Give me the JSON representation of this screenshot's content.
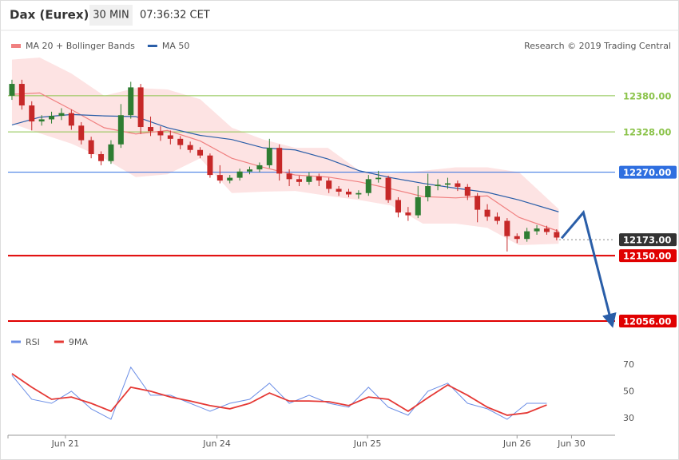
{
  "header": {
    "title": "Dax (Eurex)",
    "timeframe": "30 MIN",
    "time": "07:36:32 CET",
    "credit": "Research © 2019 Trading Central"
  },
  "chart_data": [
    {
      "type": "candlestick",
      "xlim": [
        -0.4,
        60.9
      ],
      "ylim": [
        12041,
        12443
      ],
      "up_color": "#2e7d32",
      "down_color": "#c62828",
      "x": [
        0,
        1,
        2,
        3,
        4,
        5,
        6,
        7,
        8,
        9,
        10,
        11,
        12,
        13,
        14,
        15,
        16,
        17,
        18,
        19,
        20,
        21,
        22,
        23,
        24,
        25,
        26,
        27,
        28,
        29,
        30,
        31,
        32,
        33,
        34,
        35,
        36,
        37,
        38,
        39,
        40,
        41,
        42,
        43,
        44,
        45,
        46,
        47,
        48,
        49,
        50,
        51,
        52,
        53,
        54,
        55
      ],
      "open": [
        12380,
        12397,
        12366,
        12343,
        12346,
        12351,
        12355,
        12337,
        12316,
        12296,
        12286,
        12310,
        12352,
        12392,
        12335,
        12329,
        12323,
        12318,
        12309,
        12302,
        12294,
        12266,
        12258,
        12262,
        12271,
        12274,
        12280,
        12305,
        12268,
        12260,
        12256,
        12264,
        12258,
        12246,
        12242,
        12238,
        12240,
        12260,
        12262,
        12230,
        12212,
        12208,
        12234,
        12250,
        12252,
        12254,
        12249,
        12236,
        12216,
        12206,
        12200,
        12178,
        12174,
        12185,
        12189,
        12184
      ],
      "high": [
        12403,
        12403,
        12372,
        12352,
        12357,
        12362,
        12360,
        12342,
        12321,
        12300,
        12316,
        12368,
        12400,
        12397,
        12350,
        12336,
        12330,
        12322,
        12314,
        12306,
        12297,
        12280,
        12266,
        12275,
        12278,
        12284,
        12318,
        12310,
        12274,
        12265,
        12270,
        12268,
        12262,
        12250,
        12246,
        12244,
        12266,
        12272,
        12265,
        12234,
        12220,
        12250,
        12268,
        12260,
        12262,
        12258,
        12253,
        12240,
        12224,
        12212,
        12204,
        12182,
        12190,
        12194,
        12193,
        12188
      ],
      "low": [
        12374,
        12360,
        12330,
        12337,
        12340,
        12345,
        12331,
        12310,
        12290,
        12280,
        12282,
        12305,
        12347,
        12325,
        12322,
        12315,
        12310,
        12303,
        12298,
        12290,
        12262,
        12254,
        12254,
        12258,
        12267,
        12270,
        12276,
        12258,
        12250,
        12250,
        12252,
        12250,
        12240,
        12236,
        12234,
        12232,
        12236,
        12255,
        12226,
        12205,
        12200,
        12204,
        12228,
        12244,
        12246,
        12243,
        12230,
        12198,
        12200,
        12195,
        12156,
        12168,
        12170,
        12180,
        12180,
        12172
      ],
      "close": [
        12397,
        12366,
        12343,
        12346,
        12351,
        12355,
        12337,
        12316,
        12296,
        12286,
        12310,
        12352,
        12392,
        12335,
        12329,
        12323,
        12318,
        12309,
        12302,
        12294,
        12266,
        12258,
        12262,
        12271,
        12274,
        12280,
        12305,
        12268,
        12260,
        12256,
        12264,
        12258,
        12246,
        12242,
        12238,
        12240,
        12260,
        12262,
        12230,
        12212,
        12208,
        12234,
        12250,
        12252,
        12254,
        12249,
        12236,
        12216,
        12206,
        12200,
        12178,
        12174,
        12185,
        12189,
        12184,
        12176
      ],
      "overlays": [
        {
          "name": "MA 20 + Bollinger Bands",
          "color": "#f08080",
          "fill": "#fde3e3",
          "x": [
            0,
            2.8,
            6,
            9.3,
            12.5,
            15.7,
            19,
            22.2,
            25.4,
            28.6,
            31.9,
            35.1,
            38.3,
            41.5,
            44.8,
            48,
            51.2,
            55.2
          ],
          "upper": [
            12432,
            12435,
            12412,
            12380,
            12391,
            12389,
            12375,
            12334,
            12317,
            12305,
            12305,
            12272,
            12268,
            12272,
            12277,
            12277,
            12270,
            12217
          ],
          "values": [
            12382,
            12384,
            12360,
            12334,
            12325,
            12330,
            12315,
            12290,
            12277,
            12266,
            12263,
            12256,
            12246,
            12235,
            12233,
            12236,
            12205,
            12185
          ],
          "lower": [
            12340,
            12326,
            12311,
            12290,
            12263,
            12267,
            12290,
            12240,
            12242,
            12243,
            12236,
            12230,
            12222,
            12196,
            12196,
            12190,
            12165,
            12167
          ]
        },
        {
          "name": "MA 50",
          "color": "#2a5ea8",
          "x": [
            0,
            2.8,
            6,
            9.3,
            12.5,
            15.7,
            19,
            22.2,
            25.4,
            28.6,
            31.9,
            35.1,
            38.3,
            41.5,
            44.8,
            48,
            51.2,
            55.2
          ],
          "values": [
            12338,
            12349,
            12353,
            12351,
            12350,
            12334,
            12323,
            12317,
            12305,
            12302,
            12289,
            12272,
            12262,
            12254,
            12247,
            12241,
            12230,
            12213
          ]
        }
      ],
      "levels": [
        {
          "value": 12380,
          "label": "12380.00",
          "color": "#8bc34a",
          "tag": "text",
          "line": "solid"
        },
        {
          "value": 12328,
          "label": "12328.00",
          "color": "#8bc34a",
          "tag": "text",
          "line": "solid"
        },
        {
          "value": 12270,
          "label": "12270.00",
          "color": "#2f6fe0",
          "tag": "box",
          "line": "solid"
        },
        {
          "value": 12173,
          "label": "12173.00",
          "color": "#333333",
          "tag": "box",
          "line": "dotted"
        },
        {
          "value": 12150,
          "label": "12150.00",
          "color": "#e00000",
          "tag": "box",
          "line": "solid"
        },
        {
          "value": 12056,
          "label": "12056.00",
          "color": "#e00000",
          "tag": "box",
          "line": "solid"
        }
      ],
      "forecast": {
        "color": "#2a5ea8",
        "x": [
          55.5,
          57.7,
          60.5
        ],
        "values": [
          12175,
          12212,
          12056
        ]
      }
    },
    {
      "type": "line",
      "xlim": [
        -0.4,
        60.9
      ],
      "ylim": [
        17.5,
        80
      ],
      "yticks": [
        30,
        50,
        70
      ],
      "xticks": [
        {
          "value": 5.4,
          "label": "Jun 21"
        },
        {
          "value": 20.7,
          "label": "Jun 24"
        },
        {
          "value": 35.9,
          "label": "Jun 25"
        },
        {
          "value": 51,
          "label": "Jun 26"
        },
        {
          "value": 56.5,
          "label": "Jun 30"
        }
      ],
      "series": [
        {
          "name": "RSI",
          "color": "#6b8ee6",
          "x": [
            0,
            2,
            4,
            6,
            8,
            10,
            12,
            14,
            16,
            18,
            20,
            22,
            24,
            26,
            28,
            30,
            32,
            34,
            36,
            38,
            40,
            42,
            44,
            46,
            48,
            50,
            52,
            54
          ],
          "values": [
            62.2,
            44.3,
            41.3,
            50.3,
            37.2,
            29.4,
            68.2,
            47.3,
            47.3,
            41.3,
            35.4,
            41.3,
            44.3,
            56.3,
            41.3,
            47.3,
            41.3,
            38.4,
            53.3,
            38.4,
            32.4,
            50.3,
            56.3,
            41.3,
            37.2,
            29.4,
            41.3,
            41.3
          ]
        },
        {
          "name": "9MA",
          "color": "#e53935",
          "x": [
            0,
            2,
            4,
            6,
            8,
            10,
            12,
            14,
            16,
            18,
            20,
            22,
            24,
            26,
            28,
            30,
            32,
            34,
            36,
            38,
            40,
            42,
            44,
            46,
            48,
            50,
            52,
            54
          ],
          "values": [
            63.4,
            53.3,
            44.3,
            46,
            41.3,
            35.4,
            53.3,
            50.3,
            46,
            43,
            39.6,
            37.2,
            41.3,
            49,
            43,
            43,
            42.5,
            39.6,
            46,
            44.3,
            35.4,
            45.5,
            55,
            47.3,
            38.4,
            32.4,
            34.2,
            40.1
          ]
        }
      ]
    }
  ]
}
